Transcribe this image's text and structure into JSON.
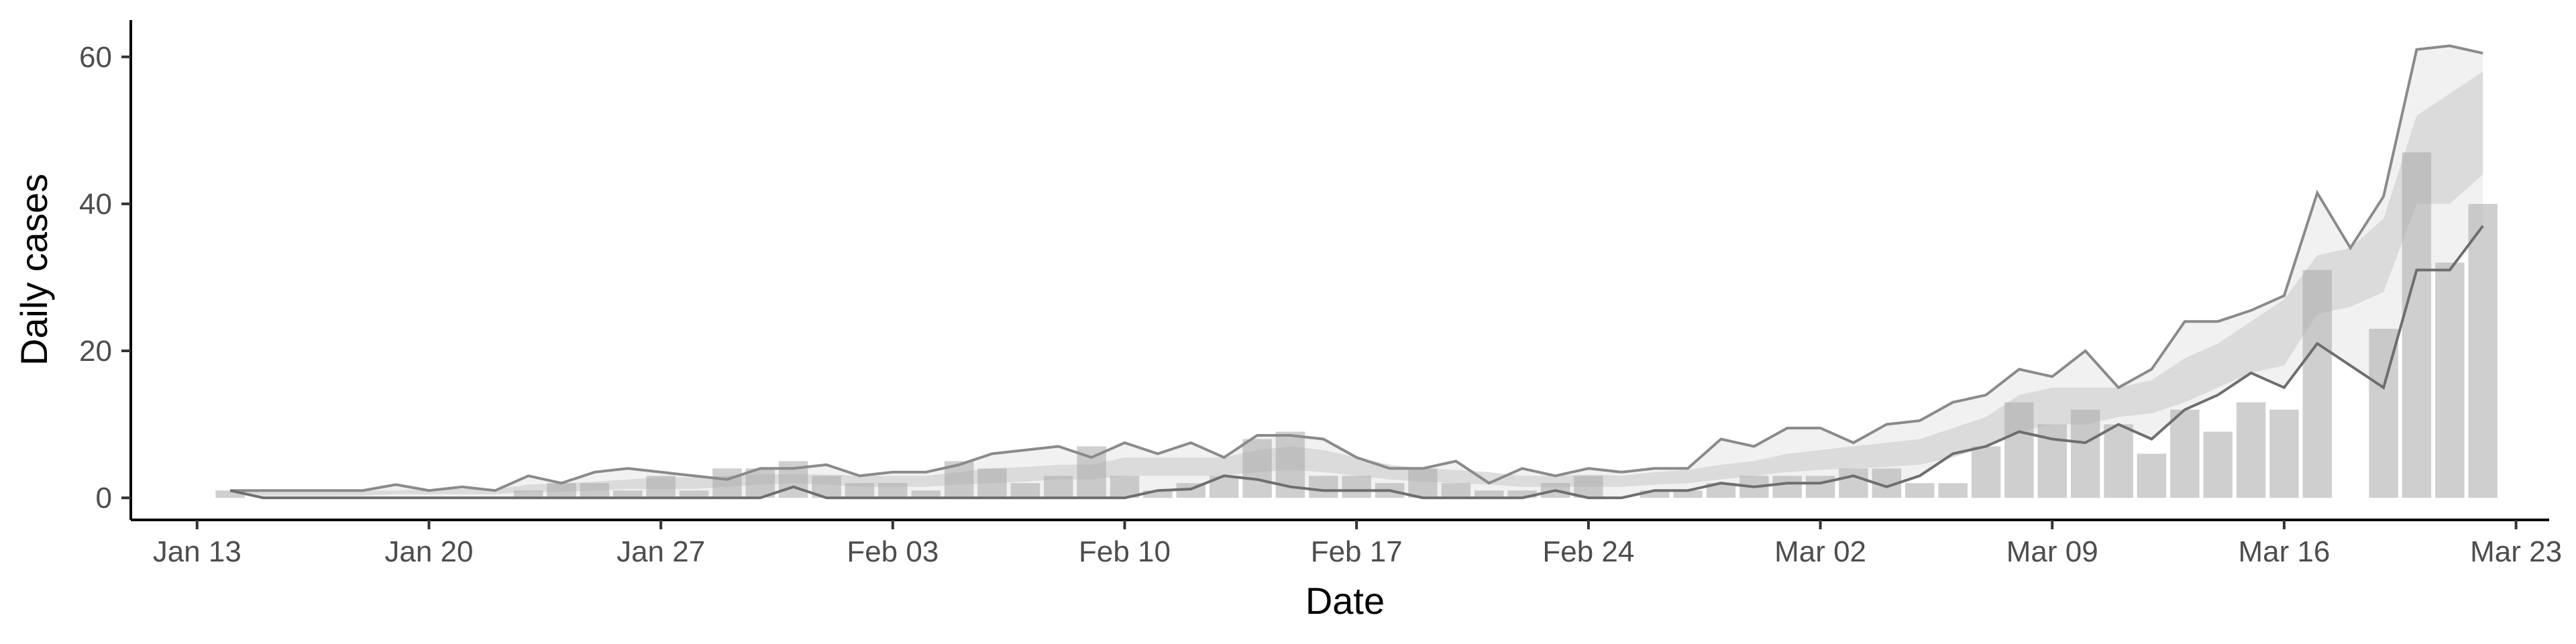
{
  "chart_data": {
    "type": "bar",
    "title": "",
    "xlabel": "Date",
    "ylabel": "Daily cases",
    "x_start": "2020-01-14",
    "x_end": "2020-03-21",
    "xlim": [
      "2020-01-11",
      "2020-03-24"
    ],
    "ylim": [
      -3,
      65
    ],
    "yticks": [
      0,
      20,
      40,
      60
    ],
    "xticks": [
      {
        "label": "Jan 13",
        "date": "2020-01-13"
      },
      {
        "label": "Jan 20",
        "date": "2020-01-20"
      },
      {
        "label": "Jan 27",
        "date": "2020-01-27"
      },
      {
        "label": "Feb 03",
        "date": "2020-02-03"
      },
      {
        "label": "Feb 10",
        "date": "2020-02-10"
      },
      {
        "label": "Feb 17",
        "date": "2020-02-17"
      },
      {
        "label": "Feb 24",
        "date": "2020-02-24"
      },
      {
        "label": "Mar 02",
        "date": "2020-03-02"
      },
      {
        "label": "Mar 09",
        "date": "2020-03-09"
      },
      {
        "label": "Mar 16",
        "date": "2020-03-16"
      },
      {
        "label": "Mar 23",
        "date": "2020-03-23"
      }
    ],
    "grid": false,
    "legend": "none",
    "bars": [
      1,
      0,
      0,
      0,
      0,
      0,
      0,
      0,
      0,
      1,
      2,
      2,
      1,
      3,
      1,
      4,
      4,
      5,
      3,
      2,
      2,
      1,
      5,
      4,
      2,
      3,
      7,
      3,
      1,
      2,
      3,
      8,
      9,
      3,
      3,
      2,
      4,
      2,
      1,
      1,
      2,
      3,
      0,
      1,
      1,
      2,
      3,
      3,
      3,
      4,
      4,
      2,
      2,
      7,
      13,
      10,
      12,
      10,
      6,
      12,
      9,
      13,
      12,
      31,
      0,
      23,
      47,
      32,
      40
    ],
    "band_outer_lower": [
      1,
      0,
      0,
      0,
      0,
      0,
      0,
      0,
      0,
      0,
      0,
      0,
      0,
      0,
      0,
      0,
      0,
      1.5,
      0,
      0,
      0,
      0,
      0,
      0,
      0,
      0,
      0,
      0,
      1,
      1.2,
      3,
      2.5,
      1.5,
      1,
      1,
      1,
      0,
      0,
      0,
      0,
      1,
      0,
      0,
      1,
      1,
      2,
      1.5,
      2,
      2,
      3,
      1.5,
      3,
      6,
      7,
      9,
      8,
      7.5,
      10,
      8,
      12,
      14,
      17,
      15,
      21,
      18,
      15,
      31,
      31,
      37
    ],
    "band_outer_upper": [
      1,
      1,
      1,
      1,
      1,
      1.8,
      1,
      1.5,
      1,
      3,
      2,
      3.5,
      4,
      3.5,
      3,
      2.5,
      4,
      4,
      4.5,
      3,
      3.5,
      3.5,
      4.5,
      6,
      6.5,
      7,
      5.5,
      7.5,
      6,
      7.5,
      5.5,
      8.5,
      8.5,
      8,
      5.5,
      4,
      4,
      5,
      2,
      4,
      3,
      4,
      3.5,
      4,
      4,
      8,
      7,
      9.5,
      9.5,
      7.5,
      10,
      10.5,
      13,
      14,
      17.5,
      16.5,
      20,
      15,
      17.5,
      24,
      24,
      25.5,
      27.5,
      41.5,
      34,
      41,
      61,
      61.5,
      60.5
    ],
    "band_mid_lower": [
      1,
      0.3,
      0.3,
      0.3,
      0.3,
      0.5,
      0.5,
      0.5,
      0.5,
      0.8,
      0.8,
      1,
      1.2,
      1.2,
      1.2,
      1.5,
      1.8,
      2,
      1.8,
      1.5,
      1.5,
      1.5,
      1.8,
      2,
      2.2,
      2.5,
      2.5,
      3,
      3,
      3,
      3,
      3.5,
      3.8,
      3.5,
      3,
      2.5,
      2.2,
      2,
      1.8,
      1.5,
      1.5,
      1.5,
      1.5,
      1.8,
      2,
      2.5,
      3,
      3.5,
      3.8,
      4,
      4.2,
      4.5,
      5.5,
      7,
      9,
      10,
      10,
      11,
      11.5,
      13,
      15,
      17,
      18,
      25,
      26,
      28,
      40,
      40,
      44
    ],
    "band_mid_upper": [
      1,
      0.8,
      0.8,
      0.8,
      1,
      1,
      1.2,
      1.2,
      1.2,
      1.8,
      2,
      2.2,
      2.5,
      2.8,
      2.8,
      3,
      3.2,
      3.2,
      3.2,
      3,
      3,
      3,
      3.5,
      4,
      4.2,
      4.5,
      4.5,
      5.5,
      5.5,
      5.5,
      5.5,
      6.5,
      7,
      6.5,
      5.5,
      4.5,
      4,
      3.8,
      3.5,
      3,
      3,
      3.2,
      3,
      3.5,
      3.8,
      4.5,
      5,
      6,
      6.5,
      7,
      7.5,
      8,
      9.5,
      11,
      14,
      15,
      15,
      15,
      16,
      19,
      21,
      24,
      27,
      33,
      34,
      38,
      52,
      55,
      58
    ]
  }
}
